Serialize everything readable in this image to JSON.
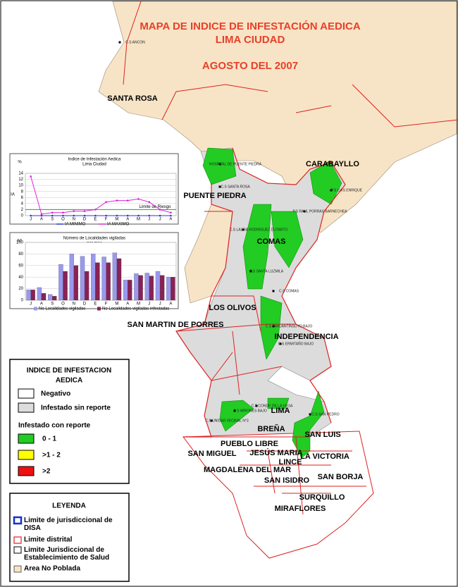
{
  "title": {
    "line1": "MAPA DE INDICE DE INFESTACIÓN AEDICA",
    "line2": "LIMA CIUDAD",
    "date": "AGOSTO DEL 2007"
  },
  "districts": [
    "SANTA ROSA",
    "CARABAYLLO",
    "PUENTE PIEDRA",
    "COMAS",
    "LOS OLIVOS",
    "SAN MARTIN DE PORRES",
    "INDEPENDENCIA",
    "LIMA",
    "BREÑA",
    "SAN LUIS",
    "PUEBLO LIBRE",
    "SAN MIGUEL",
    "JESÚS MARIA",
    "LA VICTORIA",
    "LINCE",
    "MAGDALENA DEL MAR",
    "SAN ISIDRO",
    "SAN BORJA",
    "SURQUILLO",
    "MIRAFLORES"
  ],
  "facilities": [
    "C.S ANCON",
    "HOSPITAL DE PUENTE PIEDRA",
    "C.S SANTA ROSA",
    "P.S LUIS ENRIQUE",
    "P.S RAUL PORRAS BARNECHEA",
    "C.S LAURA RODRIGUEZ DUTARTO",
    "C.S SANTA LUZMILA",
    "C.S COMAS",
    "C.S TAHUANTINSUYO BAJO",
    "C.S ERMITAÑO BAJO",
    "C.S CONDE DE LA VEGA",
    "C.S MIRONES BAJO",
    "C.S SAN PEDRO",
    "C.S UNIDAD VECINAL N°3"
  ],
  "chart_data": [
    {
      "type": "line",
      "title": "Indice de Infestación Aedica",
      "subtitle": "Lima Ciudad",
      "y_label": "%",
      "y_axis_label": "IA",
      "categories": [
        "J",
        "A",
        "S",
        "O",
        "N",
        "D",
        "E",
        "F",
        "M",
        "A",
        "M",
        "J",
        "J",
        "A"
      ],
      "ylim": [
        0,
        14
      ],
      "yticks": [
        0,
        2,
        4,
        6,
        8,
        10,
        12,
        14
      ],
      "grid": true,
      "reference_line": {
        "label": "Limite de Riesgo",
        "value": 2,
        "color": "#22aa22"
      },
      "series": [
        {
          "name": "IA MINIMO",
          "color": "#3333cc",
          "values": [
            0,
            0,
            0,
            0,
            0,
            0,
            0,
            0,
            0,
            0,
            0,
            0,
            0,
            0
          ]
        },
        {
          "name": "IA MAXIMO",
          "color": "#dd22dd",
          "values": [
            13,
            0.5,
            1,
            1,
            1.5,
            1.5,
            2,
            4.5,
            5,
            5,
            5.5,
            4.5,
            2,
            1
          ]
        }
      ]
    },
    {
      "type": "bar",
      "title": "Número de Localidades vigiladas",
      "subtitle": "por mes",
      "y_label": "N°",
      "categories": [
        "J",
        "A",
        "S",
        "O",
        "N",
        "D",
        "E",
        "F",
        "M",
        "A",
        "M",
        "J",
        "J",
        "A"
      ],
      "ylim": [
        0,
        100
      ],
      "yticks": [
        0,
        20,
        40,
        60,
        80,
        100
      ],
      "grid": true,
      "series": [
        {
          "name": "No Localidades vigiladas",
          "color": "#9999ee",
          "values": [
            18,
            22,
            10,
            62,
            80,
            76,
            80,
            75,
            82,
            35,
            46,
            47,
            50,
            40
          ]
        },
        {
          "name": "No Localidades vigiladas infestadas",
          "color": "#882255",
          "values": [
            18,
            12,
            7,
            50,
            60,
            50,
            65,
            65,
            72,
            35,
            43,
            42,
            43,
            40
          ]
        }
      ]
    }
  ],
  "legend_index": {
    "title_line1": "INDICE DE INFESTACION",
    "title_line2": "AEDICA",
    "negative": "Negativo",
    "no_report": "Infestado sin reporte",
    "with_report": "Infestado con reporte",
    "ranges": [
      "0 - 1",
      ">1 - 2",
      ">2"
    ]
  },
  "legend": {
    "title": "LEYENDA",
    "items": [
      "Limite de jurisdiccional de DISA",
      "Limite distrital",
      "Limite Jurisdiccional de Establecimiento de Salud",
      "Area No Poblada"
    ]
  }
}
